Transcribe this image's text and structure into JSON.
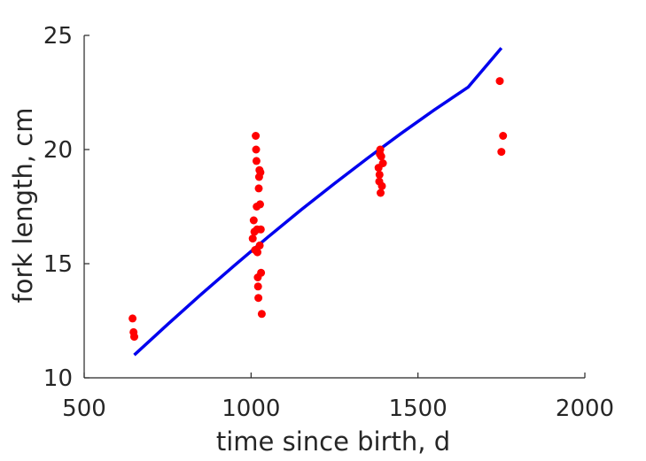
{
  "chart_data": {
    "type": "scatter",
    "xlabel": "time since birth, d",
    "ylabel": "fork length, cm",
    "xlim": [
      500,
      2000
    ],
    "ylim": [
      10,
      25
    ],
    "xticks": [
      "500",
      "1000",
      "1500",
      "2000"
    ],
    "yticks": [
      "10",
      "15",
      "20",
      "25"
    ],
    "grid": false,
    "colors": {
      "points": "#ff0000",
      "fit_line": "#0000ee",
      "axes": "#262626"
    },
    "series": [
      {
        "type": "scatter",
        "points": [
          [
            645,
            12.6
          ],
          [
            648,
            12.0
          ],
          [
            650,
            11.8
          ],
          [
            1005,
            16.1
          ],
          [
            1008,
            16.9
          ],
          [
            1010,
            16.4
          ],
          [
            1012,
            15.6
          ],
          [
            1014,
            20.6
          ],
          [
            1015,
            20.0
          ],
          [
            1016,
            19.5
          ],
          [
            1017,
            17.5
          ],
          [
            1018,
            16.5
          ],
          [
            1019,
            15.5
          ],
          [
            1020,
            14.4
          ],
          [
            1021,
            14.0
          ],
          [
            1022,
            13.5
          ],
          [
            1023,
            18.3
          ],
          [
            1024,
            18.8
          ],
          [
            1025,
            19.1
          ],
          [
            1026,
            15.8
          ],
          [
            1027,
            17.6
          ],
          [
            1028,
            19.0
          ],
          [
            1029,
            16.5
          ],
          [
            1030,
            14.6
          ],
          [
            1032,
            12.8
          ],
          [
            1382,
            19.2
          ],
          [
            1384,
            18.6
          ],
          [
            1385,
            18.9
          ],
          [
            1386,
            19.8
          ],
          [
            1387,
            20.0
          ],
          [
            1388,
            18.1
          ],
          [
            1390,
            19.7
          ],
          [
            1392,
            18.4
          ],
          [
            1395,
            19.4
          ],
          [
            1745,
            23.0
          ],
          [
            1750,
            19.9
          ],
          [
            1755,
            20.6
          ]
        ]
      },
      {
        "type": "line",
        "points": [
          [
            650,
            11.0
          ],
          [
            750,
            12.34
          ],
          [
            850,
            13.65
          ],
          [
            950,
            14.92
          ],
          [
            1050,
            16.16
          ],
          [
            1150,
            17.36
          ],
          [
            1250,
            18.51
          ],
          [
            1350,
            19.63
          ],
          [
            1450,
            20.71
          ],
          [
            1550,
            21.75
          ],
          [
            1650,
            22.73
          ],
          [
            1750,
            24.45
          ]
        ]
      }
    ]
  }
}
